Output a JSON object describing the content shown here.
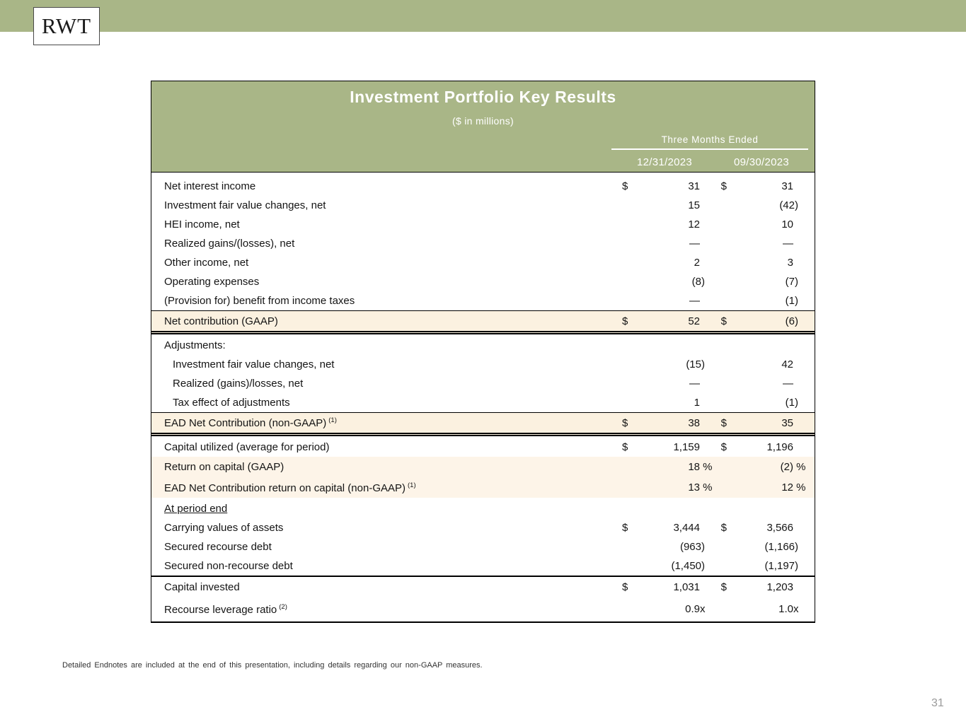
{
  "banner": {
    "logo_text": "RWT"
  },
  "colors": {
    "banner_green": "#a9b687",
    "highlight_cream": "#fbf1e0",
    "percent_cream": "#fdf4e8",
    "page_number_gray": "#9a9a9a"
  },
  "table": {
    "title": "Investment Portfolio Key Results",
    "subtitle": "($ in millions)",
    "column_group": "Three Months Ended",
    "columns": [
      "12/31/2023",
      "09/30/2023"
    ],
    "rows": [
      {
        "label": "Net interest income",
        "d1": "$",
        "v1": "31",
        "d2": "$",
        "v2": "31",
        "style": "normal"
      },
      {
        "label": "Investment fair value changes, net",
        "v1": "15",
        "v2": "(42)",
        "style": "normal"
      },
      {
        "label": "HEI income, net",
        "v1": "12",
        "v2": "10",
        "style": "normal"
      },
      {
        "label": "Realized gains/(losses), net",
        "v1": "—",
        "v2": "—",
        "style": "normal"
      },
      {
        "label": "Other income, net",
        "v1": "2",
        "v2": "3",
        "style": "normal"
      },
      {
        "label": "Operating expenses",
        "v1": "(8)",
        "v2": "(7)",
        "style": "normal"
      },
      {
        "label": "(Provision for) benefit from income taxes",
        "v1": "—",
        "v2": "(1)",
        "style": "normal"
      },
      {
        "label": "Net contribution (GAAP)",
        "d1": "$",
        "v1": "52",
        "d2": "$",
        "v2": "(6)",
        "style": "total"
      },
      {
        "style": "gap"
      },
      {
        "label": "Adjustments:",
        "style": "normal"
      },
      {
        "label": "Investment fair value changes, net",
        "indent": true,
        "v1": "(15)",
        "v2": "42",
        "style": "normal"
      },
      {
        "label": "Realized (gains)/losses, net",
        "indent": true,
        "v1": "—",
        "v2": "—",
        "style": "normal"
      },
      {
        "label": "Tax effect of adjustments",
        "indent": true,
        "v1": "1",
        "v2": "(1)",
        "style": "normal"
      },
      {
        "label": "EAD Net Contribution (non-GAAP)",
        "sup": "(1)",
        "d1": "$",
        "v1": "38",
        "d2": "$",
        "v2": "35",
        "style": "total"
      },
      {
        "style": "gap"
      },
      {
        "label": "Capital utilized (average for period)",
        "d1": "$",
        "v1": "1,159",
        "d2": "$",
        "v2": "1,196",
        "style": "normal"
      },
      {
        "label": "Return on capital (GAAP)",
        "v1": "18",
        "s1": " %",
        "v2": "(2)",
        "s2": " %",
        "style": "percent"
      },
      {
        "label": "EAD Net Contribution return on capital (non-GAAP)",
        "sup": "(1)",
        "v1": "13",
        "s1": " %",
        "v2": "12",
        "s2": " %",
        "style": "percent"
      },
      {
        "style": "gap"
      },
      {
        "label": "At period end",
        "underline": true,
        "style": "normal"
      },
      {
        "label": "Carrying values of assets",
        "d1": "$",
        "v1": "3,444",
        "d2": "$",
        "v2": "3,566",
        "style": "normal"
      },
      {
        "label": "Secured recourse debt",
        "v1": "(963)",
        "v2": "(1,166)",
        "style": "normal"
      },
      {
        "label": "Secured non-recourse debt",
        "v1": "(1,450)",
        "v2": "(1,197)",
        "style": "normal"
      },
      {
        "label": "Capital invested",
        "d1": "$",
        "v1": "1,031",
        "d2": "$",
        "v2": "1,203",
        "style": "subtotal"
      },
      {
        "label": "Recourse leverage ratio",
        "sup": "(2)",
        "v1": "0.9",
        "s1": "x",
        "v2": "1.0",
        "s2": "x",
        "style": "last"
      }
    ]
  },
  "footnote": "Detailed Endnotes are included at the end of this presentation, including details regarding our non-GAAP measures.",
  "page": {
    "number": "31"
  }
}
